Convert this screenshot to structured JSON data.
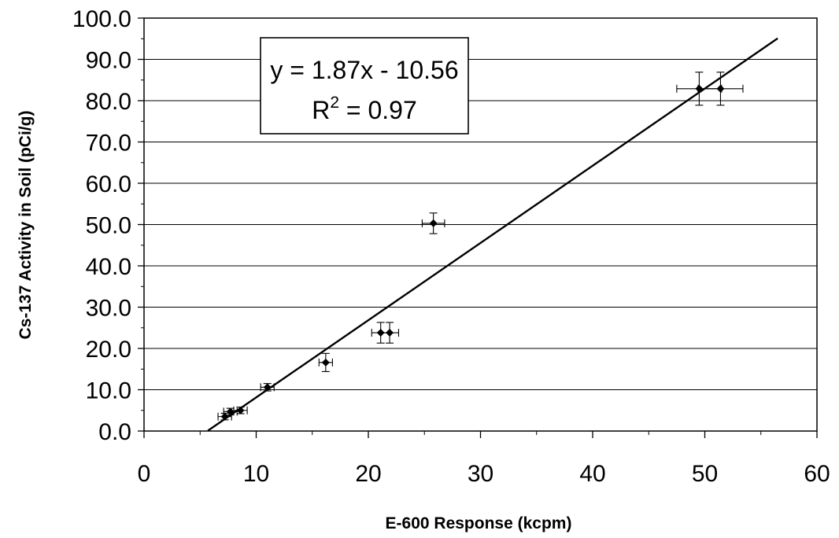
{
  "chart_data": {
    "type": "scatter",
    "xlabel": "E-600 Response (kcpm)",
    "ylabel": "Cs-137 Activity in Soil (pCi/g)",
    "xlim": [
      0,
      60
    ],
    "ylim": [
      0,
      100
    ],
    "x_ticks": [
      0,
      10,
      20,
      30,
      40,
      50,
      60
    ],
    "y_ticks": [
      "0.0",
      "10.0",
      "20.0",
      "30.0",
      "40.0",
      "50.0",
      "60.0",
      "70.0",
      "80.0",
      "90.0",
      "100.0"
    ],
    "grid": "horizontal",
    "points": [
      {
        "x": 7.2,
        "y": 3.5,
        "xerr": 0.6,
        "yerr": 0.8
      },
      {
        "x": 7.7,
        "y": 4.7,
        "xerr": 0.6,
        "yerr": 0.8
      },
      {
        "x": 8.6,
        "y": 5.0,
        "xerr": 0.6,
        "yerr": 0.8
      },
      {
        "x": 11.0,
        "y": 10.6,
        "xerr": 0.6,
        "yerr": 0.9
      },
      {
        "x": 16.2,
        "y": 16.6,
        "xerr": 0.6,
        "yerr": 2.2
      },
      {
        "x": 21.1,
        "y": 23.8,
        "xerr": 0.8,
        "yerr": 2.5
      },
      {
        "x": 21.9,
        "y": 23.8,
        "xerr": 0.8,
        "yerr": 2.5
      },
      {
        "x": 25.8,
        "y": 50.3,
        "xerr": 1.0,
        "yerr": 2.5
      },
      {
        "x": 49.5,
        "y": 82.9,
        "xerr": 2.0,
        "yerr": 4.0
      },
      {
        "x": 51.4,
        "y": 82.9,
        "xerr": 2.0,
        "yerr": 4.0
      }
    ],
    "trendline": {
      "slope": 1.87,
      "intercept": -10.56,
      "x_range": [
        5.7,
        56.5
      ]
    },
    "annotation": {
      "equation": "y = 1.87x - 10.56",
      "r2_prefix": "R",
      "r2_sup": "2",
      "r2_value": " = 0.97"
    }
  }
}
